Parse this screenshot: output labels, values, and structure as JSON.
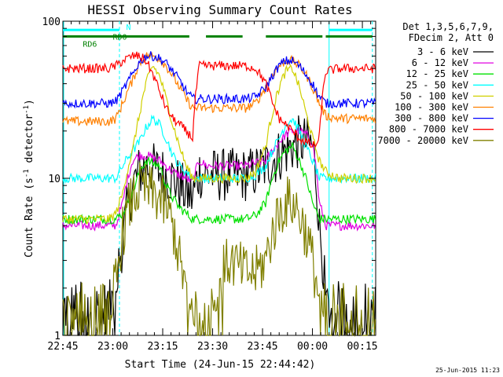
{
  "chart_data": {
    "type": "line",
    "title": "HESSI Observing Summary Count Rates",
    "xlabel": "Start Time (24-Jun-15 22:44:42)",
    "ylabel": "Count Rate (s⁻¹ detector⁻¹)",
    "ylabel_main": "Count Rate (s",
    "ylabel_sup1": "-1",
    "ylabel_mid": " detector",
    "ylabel_sup2": "-1",
    "ylabel_end": ")",
    "y_scale": "log",
    "ylim": [
      1,
      100
    ],
    "xlim_minutes": [
      0,
      94
    ],
    "x_ticks": [
      {
        "minute": 0,
        "label": "22:45"
      },
      {
        "minute": 15,
        "label": "23:00"
      },
      {
        "minute": 30,
        "label": "23:15"
      },
      {
        "minute": 45,
        "label": "23:30"
      },
      {
        "minute": 60,
        "label": "23:45"
      },
      {
        "minute": 75,
        "label": "00:00"
      },
      {
        "minute": 90,
        "label": "00:15"
      }
    ],
    "y_ticks": [
      {
        "value": 1,
        "label": "1"
      },
      {
        "value": 10,
        "label": "10"
      },
      {
        "value": 100,
        "label": "100"
      }
    ],
    "legend_header": [
      "Det 1,3,5,6,7,9,",
      "FDecim 2, Att 0"
    ],
    "legend_placement": "right",
    "series": [
      {
        "name": "3 - 6 keV",
        "color": "#000000",
        "x": [
          0,
          14,
          16,
          18,
          21,
          23,
          25,
          27,
          29,
          31,
          33,
          35,
          37,
          39,
          41,
          43,
          46,
          50,
          55,
          58,
          61,
          63,
          65,
          67,
          69,
          71,
          73,
          75,
          77,
          79,
          83,
          87,
          90,
          94
        ],
        "y": [
          1.5,
          1.5,
          2,
          4,
          9,
          11,
          12,
          11.5,
          11,
          10.5,
          10,
          9,
          8,
          7.5,
          11,
          10.5,
          10.5,
          10.5,
          10.5,
          11,
          12,
          13,
          14,
          15,
          16,
          17,
          17,
          16,
          5,
          1.5,
          1.5,
          1.5,
          1.5,
          1.5
        ]
      },
      {
        "name": "6 - 12 keV",
        "color": "#e000e0",
        "x": [
          0,
          14,
          16,
          18,
          21,
          23,
          25,
          27,
          29,
          31,
          33,
          35,
          37,
          39,
          41,
          43,
          46,
          50,
          55,
          58,
          61,
          63,
          65,
          67,
          69,
          71,
          73,
          75,
          77,
          79,
          83,
          87,
          90,
          94
        ],
        "y": [
          5,
          5,
          5,
          7,
          13,
          14,
          14,
          13.5,
          13,
          12,
          11,
          10.5,
          10,
          9.5,
          13,
          12,
          12,
          12,
          12,
          12.5,
          13,
          15,
          17,
          19,
          20,
          20,
          19,
          17,
          7,
          5,
          5,
          5,
          5,
          5
        ]
      },
      {
        "name": "12 - 25 keV",
        "color": "#00e000",
        "x": [
          0,
          14,
          16,
          18,
          21,
          23,
          25,
          27,
          29,
          31,
          33,
          35,
          37,
          39,
          41,
          43,
          46,
          50,
          55,
          58,
          61,
          63,
          65,
          67,
          69,
          71,
          73,
          75,
          77,
          79,
          83,
          87,
          90,
          94
        ],
        "y": [
          5.5,
          5.5,
          5.5,
          6,
          8,
          11,
          13,
          12.5,
          12,
          9,
          7.5,
          6.5,
          6,
          5.5,
          5.5,
          5.5,
          5.5,
          5.5,
          5.5,
          5.8,
          7,
          10,
          13,
          15,
          16,
          13,
          10,
          7,
          5.5,
          5.5,
          5.5,
          5.5,
          5.5,
          5.5
        ]
      },
      {
        "name": "25 - 50 keV",
        "color": "#00ffff",
        "x": [
          0,
          14,
          16,
          18,
          21,
          23,
          25,
          27,
          29,
          31,
          33,
          35,
          37,
          39,
          41,
          43,
          46,
          50,
          55,
          58,
          61,
          63,
          65,
          67,
          69,
          71,
          73,
          75,
          77,
          79,
          83,
          87,
          90,
          94
        ],
        "y": [
          10,
          10,
          10,
          12,
          15,
          17,
          21,
          24,
          22,
          18,
          14,
          12,
          11,
          10,
          10,
          10,
          10,
          10,
          10,
          10.5,
          12,
          15,
          18,
          22,
          24,
          20,
          16,
          13,
          10,
          10,
          10,
          10,
          10,
          10
        ]
      },
      {
        "name": "50 - 100 keV",
        "color": "#d0d000",
        "x": [
          0,
          14,
          16,
          18,
          21,
          23,
          25,
          27,
          29,
          31,
          33,
          35,
          37,
          39,
          41,
          43,
          46,
          50,
          55,
          58,
          61,
          63,
          65,
          67,
          69,
          71,
          73,
          75,
          77,
          79,
          83,
          87,
          90,
          94
        ],
        "y": [
          5.5,
          5.5,
          6,
          8,
          15,
          25,
          40,
          52,
          45,
          32,
          22,
          16,
          12,
          10,
          10,
          10,
          10,
          10,
          10,
          11,
          16,
          26,
          38,
          48,
          50,
          38,
          26,
          18,
          13,
          11,
          10,
          10,
          10,
          10
        ]
      },
      {
        "name": "100 - 300 keV",
        "color": "#ff8000",
        "x": [
          0,
          14,
          16,
          18,
          21,
          23,
          25,
          27,
          29,
          31,
          33,
          35,
          37,
          39,
          41,
          43,
          46,
          50,
          55,
          58,
          61,
          63,
          65,
          67,
          69,
          71,
          73,
          75,
          77,
          79,
          83,
          87,
          90,
          94
        ],
        "y": [
          23,
          23,
          24,
          30,
          42,
          54,
          60,
          60,
          58,
          52,
          45,
          38,
          32,
          28,
          28,
          28,
          28,
          28,
          28,
          30,
          38,
          46,
          52,
          56,
          56,
          52,
          46,
          38,
          30,
          25,
          24,
          24,
          24,
          24
        ]
      },
      {
        "name": "300 - 800 keV",
        "color": "#0000ff",
        "x": [
          0,
          14,
          16,
          18,
          21,
          23,
          25,
          27,
          29,
          31,
          33,
          35,
          37,
          39,
          41,
          43,
          46,
          50,
          55,
          58,
          61,
          63,
          65,
          67,
          69,
          71,
          73,
          75,
          77,
          79,
          83,
          87,
          90,
          94
        ],
        "y": [
          30,
          30,
          31,
          36,
          46,
          55,
          60,
          60,
          58,
          54,
          48,
          42,
          36,
          32,
          32,
          32,
          32,
          32,
          32,
          33,
          38,
          45,
          52,
          56,
          56,
          52,
          46,
          40,
          33,
          30,
          30,
          30,
          30,
          30
        ]
      },
      {
        "name": "800 - 7000 keV",
        "color": "#ff0000",
        "x": [
          0,
          14,
          16,
          18,
          21,
          23,
          25,
          27,
          29,
          31,
          33,
          35,
          37,
          39,
          41,
          43,
          46,
          50,
          55,
          58,
          61,
          63,
          65,
          67,
          69,
          71,
          73,
          75,
          77,
          79,
          83,
          87,
          90,
          94
        ],
        "y": [
          50,
          50,
          52,
          56,
          60,
          60,
          56,
          46,
          36,
          28,
          24,
          22,
          20,
          18,
          52,
          52,
          52,
          52,
          52,
          50,
          40,
          30,
          24,
          22,
          20,
          18,
          17,
          16,
          17,
          48,
          50,
          50,
          50,
          50
        ]
      },
      {
        "name": "7000 - 20000 keV",
        "color": "#808000",
        "x": [
          0,
          14,
          16,
          18,
          21,
          23,
          25,
          27,
          29,
          31,
          33,
          35,
          37,
          39,
          41,
          43,
          46,
          50,
          55,
          58,
          61,
          63,
          65,
          67,
          69,
          71,
          73,
          75,
          77,
          79,
          83,
          87,
          90,
          94
        ],
        "y": [
          1.5,
          1.5,
          2.2,
          4.5,
          7.5,
          8.5,
          8.5,
          8,
          7.5,
          6.5,
          5,
          3,
          2,
          1.5,
          1.5,
          1.5,
          2,
          3,
          2.5,
          2.5,
          3,
          4.5,
          6,
          7,
          7,
          6,
          4.5,
          3,
          1.5,
          1.5,
          1.5,
          1.5,
          1.5,
          1.5
        ]
      }
    ],
    "annotations": [
      {
        "text": "N",
        "color": "#00ffff",
        "level": 92
      },
      {
        "text": "RD0",
        "color": "#008000",
        "level": 80
      },
      {
        "text": "RD6",
        "color": "#008000",
        "level": 72
      }
    ],
    "flag_bars": {
      "cyan": {
        "color": "#00ffff",
        "level": 88,
        "intervals": [
          [
            0,
            17
          ],
          [
            80,
            93
          ]
        ]
      },
      "green": {
        "color": "#008000",
        "level": 80,
        "intervals": [
          [
            0,
            38
          ],
          [
            43,
            54
          ],
          [
            61,
            78
          ],
          [
            79,
            93
          ]
        ]
      }
    },
    "vertical_markers": [
      {
        "minute": 0,
        "style": "solid",
        "color": "#00ffff"
      },
      {
        "minute": 17,
        "style": "dashed",
        "color": "#00ffff"
      },
      {
        "minute": 80,
        "style": "solid",
        "color": "#00ffff"
      },
      {
        "minute": 93,
        "style": "dashed",
        "color": "#00ffff"
      }
    ],
    "grid": false
  },
  "timestamp": "25-Jun-2015 11:23"
}
